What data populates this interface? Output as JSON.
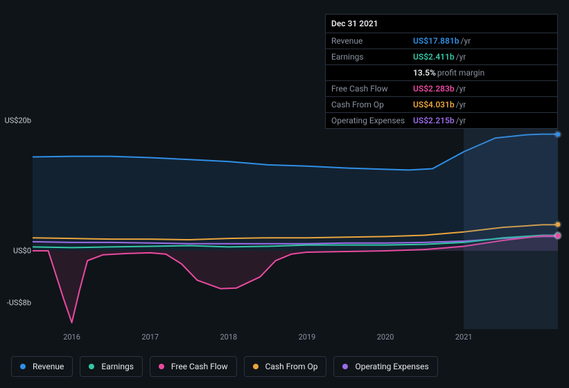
{
  "tooltip": {
    "date": "Dec 31 2021",
    "rows": [
      {
        "label": "Revenue",
        "value": "US$17.881b",
        "suffix": "/yr",
        "color": "#2f8fe6"
      },
      {
        "label": "Earnings",
        "value": "US$2.411b",
        "suffix": "/yr",
        "color": "#35c7a6"
      },
      {
        "label": "",
        "value": "13.5%",
        "suffix": "profit margin",
        "color": "#e5e8ec",
        "margin": true
      },
      {
        "label": "Free Cash Flow",
        "value": "US$2.283b",
        "suffix": "/yr",
        "color": "#e84b9f"
      },
      {
        "label": "Cash From Op",
        "value": "US$4.031b",
        "suffix": "/yr",
        "color": "#e8a53d"
      },
      {
        "label": "Operating Expenses",
        "value": "US$2.215b",
        "suffix": "/yr",
        "color": "#9b6ce8"
      }
    ]
  },
  "chart": {
    "background": "#0f1419",
    "area_opacity": 0.12,
    "line_width": 2,
    "xlim": [
      2015.5,
      2022.2
    ],
    "ylim": [
      -12,
      22
    ],
    "yticks": [
      {
        "v": 20,
        "label": "US$20b"
      },
      {
        "v": 0,
        "label": "US$0"
      },
      {
        "v": -8,
        "label": "-US$8b"
      }
    ],
    "xticks": [
      2016,
      2017,
      2018,
      2019,
      2020,
      2021
    ],
    "highlight_band": {
      "from": 2021.0,
      "to": 2022.2,
      "opacity": 0.18
    },
    "series": [
      {
        "name": "Revenue",
        "color": "#2f8fe6",
        "fill": true,
        "points": [
          [
            2015.5,
            14.4
          ],
          [
            2016,
            14.5
          ],
          [
            2016.5,
            14.5
          ],
          [
            2017,
            14.3
          ],
          [
            2017.5,
            14.0
          ],
          [
            2018,
            13.7
          ],
          [
            2018.5,
            13.2
          ],
          [
            2019,
            13.0
          ],
          [
            2019.5,
            12.7
          ],
          [
            2020,
            12.5
          ],
          [
            2020.3,
            12.4
          ],
          [
            2020.6,
            12.6
          ],
          [
            2021,
            15.2
          ],
          [
            2021.4,
            17.3
          ],
          [
            2021.8,
            17.8
          ],
          [
            2022.0,
            17.9
          ],
          [
            2022.2,
            17.9
          ]
        ]
      },
      {
        "name": "Cash From Op",
        "color": "#e8a53d",
        "fill": false,
        "points": [
          [
            2015.5,
            2.0
          ],
          [
            2016,
            1.9
          ],
          [
            2016.5,
            1.8
          ],
          [
            2017,
            1.8
          ],
          [
            2017.5,
            1.7
          ],
          [
            2018,
            1.9
          ],
          [
            2018.5,
            2.0
          ],
          [
            2019,
            2.0
          ],
          [
            2019.5,
            2.1
          ],
          [
            2020,
            2.2
          ],
          [
            2020.5,
            2.4
          ],
          [
            2021,
            2.9
          ],
          [
            2021.5,
            3.6
          ],
          [
            2022.0,
            4.0
          ],
          [
            2022.2,
            4.0
          ]
        ]
      },
      {
        "name": "Operating Expenses",
        "color": "#9b6ce8",
        "fill": false,
        "points": [
          [
            2015.5,
            1.4
          ],
          [
            2016,
            1.3
          ],
          [
            2016.5,
            1.3
          ],
          [
            2017,
            1.2
          ],
          [
            2017.5,
            1.1
          ],
          [
            2018,
            1.1
          ],
          [
            2018.5,
            1.1
          ],
          [
            2019,
            1.1
          ],
          [
            2019.5,
            1.2
          ],
          [
            2020,
            1.2
          ],
          [
            2020.5,
            1.3
          ],
          [
            2021,
            1.5
          ],
          [
            2021.5,
            1.9
          ],
          [
            2022.0,
            2.2
          ],
          [
            2022.2,
            2.2
          ]
        ]
      },
      {
        "name": "Earnings",
        "color": "#35c7a6",
        "fill": false,
        "points": [
          [
            2015.5,
            0.6
          ],
          [
            2016,
            0.5
          ],
          [
            2016.5,
            0.6
          ],
          [
            2017,
            0.7
          ],
          [
            2017.5,
            0.8
          ],
          [
            2018,
            0.6
          ],
          [
            2018.5,
            0.7
          ],
          [
            2019,
            0.9
          ],
          [
            2019.5,
            0.9
          ],
          [
            2020,
            0.9
          ],
          [
            2020.5,
            1.0
          ],
          [
            2021,
            1.3
          ],
          [
            2021.5,
            2.0
          ],
          [
            2022.0,
            2.4
          ],
          [
            2022.2,
            2.4
          ]
        ]
      },
      {
        "name": "Free Cash Flow",
        "color": "#e84b9f",
        "fill": true,
        "points": [
          [
            2015.5,
            0.0
          ],
          [
            2015.7,
            0.0
          ],
          [
            2015.9,
            -7.5
          ],
          [
            2016.0,
            -11.0
          ],
          [
            2016.1,
            -6.0
          ],
          [
            2016.2,
            -1.5
          ],
          [
            2016.4,
            -0.6
          ],
          [
            2016.7,
            -0.4
          ],
          [
            2017,
            -0.3
          ],
          [
            2017.2,
            -0.5
          ],
          [
            2017.4,
            -2.0
          ],
          [
            2017.6,
            -4.5
          ],
          [
            2017.9,
            -5.8
          ],
          [
            2018.1,
            -5.7
          ],
          [
            2018.4,
            -4.0
          ],
          [
            2018.6,
            -1.5
          ],
          [
            2018.8,
            -0.5
          ],
          [
            2019,
            -0.2
          ],
          [
            2019.5,
            -0.1
          ],
          [
            2020,
            0.0
          ],
          [
            2020.5,
            0.2
          ],
          [
            2021,
            0.7
          ],
          [
            2021.5,
            1.6
          ],
          [
            2022.0,
            2.3
          ],
          [
            2022.2,
            2.3
          ]
        ]
      }
    ],
    "legend_order": [
      "Revenue",
      "Earnings",
      "Free Cash Flow",
      "Cash From Op",
      "Operating Expenses"
    ]
  }
}
